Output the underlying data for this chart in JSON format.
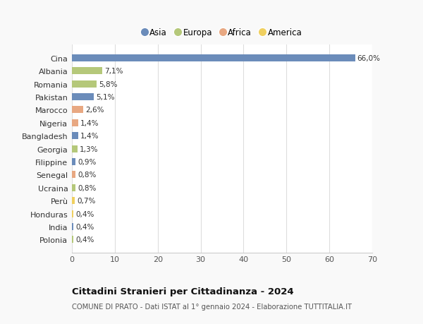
{
  "countries": [
    "Cina",
    "Albania",
    "Romania",
    "Pakistan",
    "Marocco",
    "Nigeria",
    "Bangladesh",
    "Georgia",
    "Filippine",
    "Senegal",
    "Ucraina",
    "Perù",
    "Honduras",
    "India",
    "Polonia"
  ],
  "values": [
    66.0,
    7.1,
    5.8,
    5.1,
    2.6,
    1.4,
    1.4,
    1.3,
    0.9,
    0.8,
    0.8,
    0.7,
    0.4,
    0.4,
    0.4
  ],
  "labels": [
    "66,0%",
    "7,1%",
    "5,8%",
    "5,1%",
    "2,6%",
    "1,4%",
    "1,4%",
    "1,3%",
    "0,9%",
    "0,8%",
    "0,8%",
    "0,7%",
    "0,4%",
    "0,4%",
    "0,4%"
  ],
  "continents": [
    "Asia",
    "Europa",
    "Europa",
    "Asia",
    "Africa",
    "Africa",
    "Asia",
    "Europa",
    "Asia",
    "Africa",
    "Europa",
    "America",
    "America",
    "Asia",
    "Europa"
  ],
  "continent_colors": {
    "Asia": "#6b8cba",
    "Europa": "#b5c87a",
    "Africa": "#e8a882",
    "America": "#f0d060"
  },
  "legend_order": [
    "Asia",
    "Europa",
    "Africa",
    "America"
  ],
  "background_color": "#f9f9f9",
  "plot_bg_color": "#ffffff",
  "title": "Cittadini Stranieri per Cittadinanza - 2024",
  "subtitle": "COMUNE DI PRATO - Dati ISTAT al 1° gennaio 2024 - Elaborazione TUTTITALIA.IT",
  "xlim": [
    0,
    70
  ],
  "xticks": [
    0,
    10,
    20,
    30,
    40,
    50,
    60,
    70
  ],
  "grid_color": "#dddddd",
  "bar_height": 0.55
}
